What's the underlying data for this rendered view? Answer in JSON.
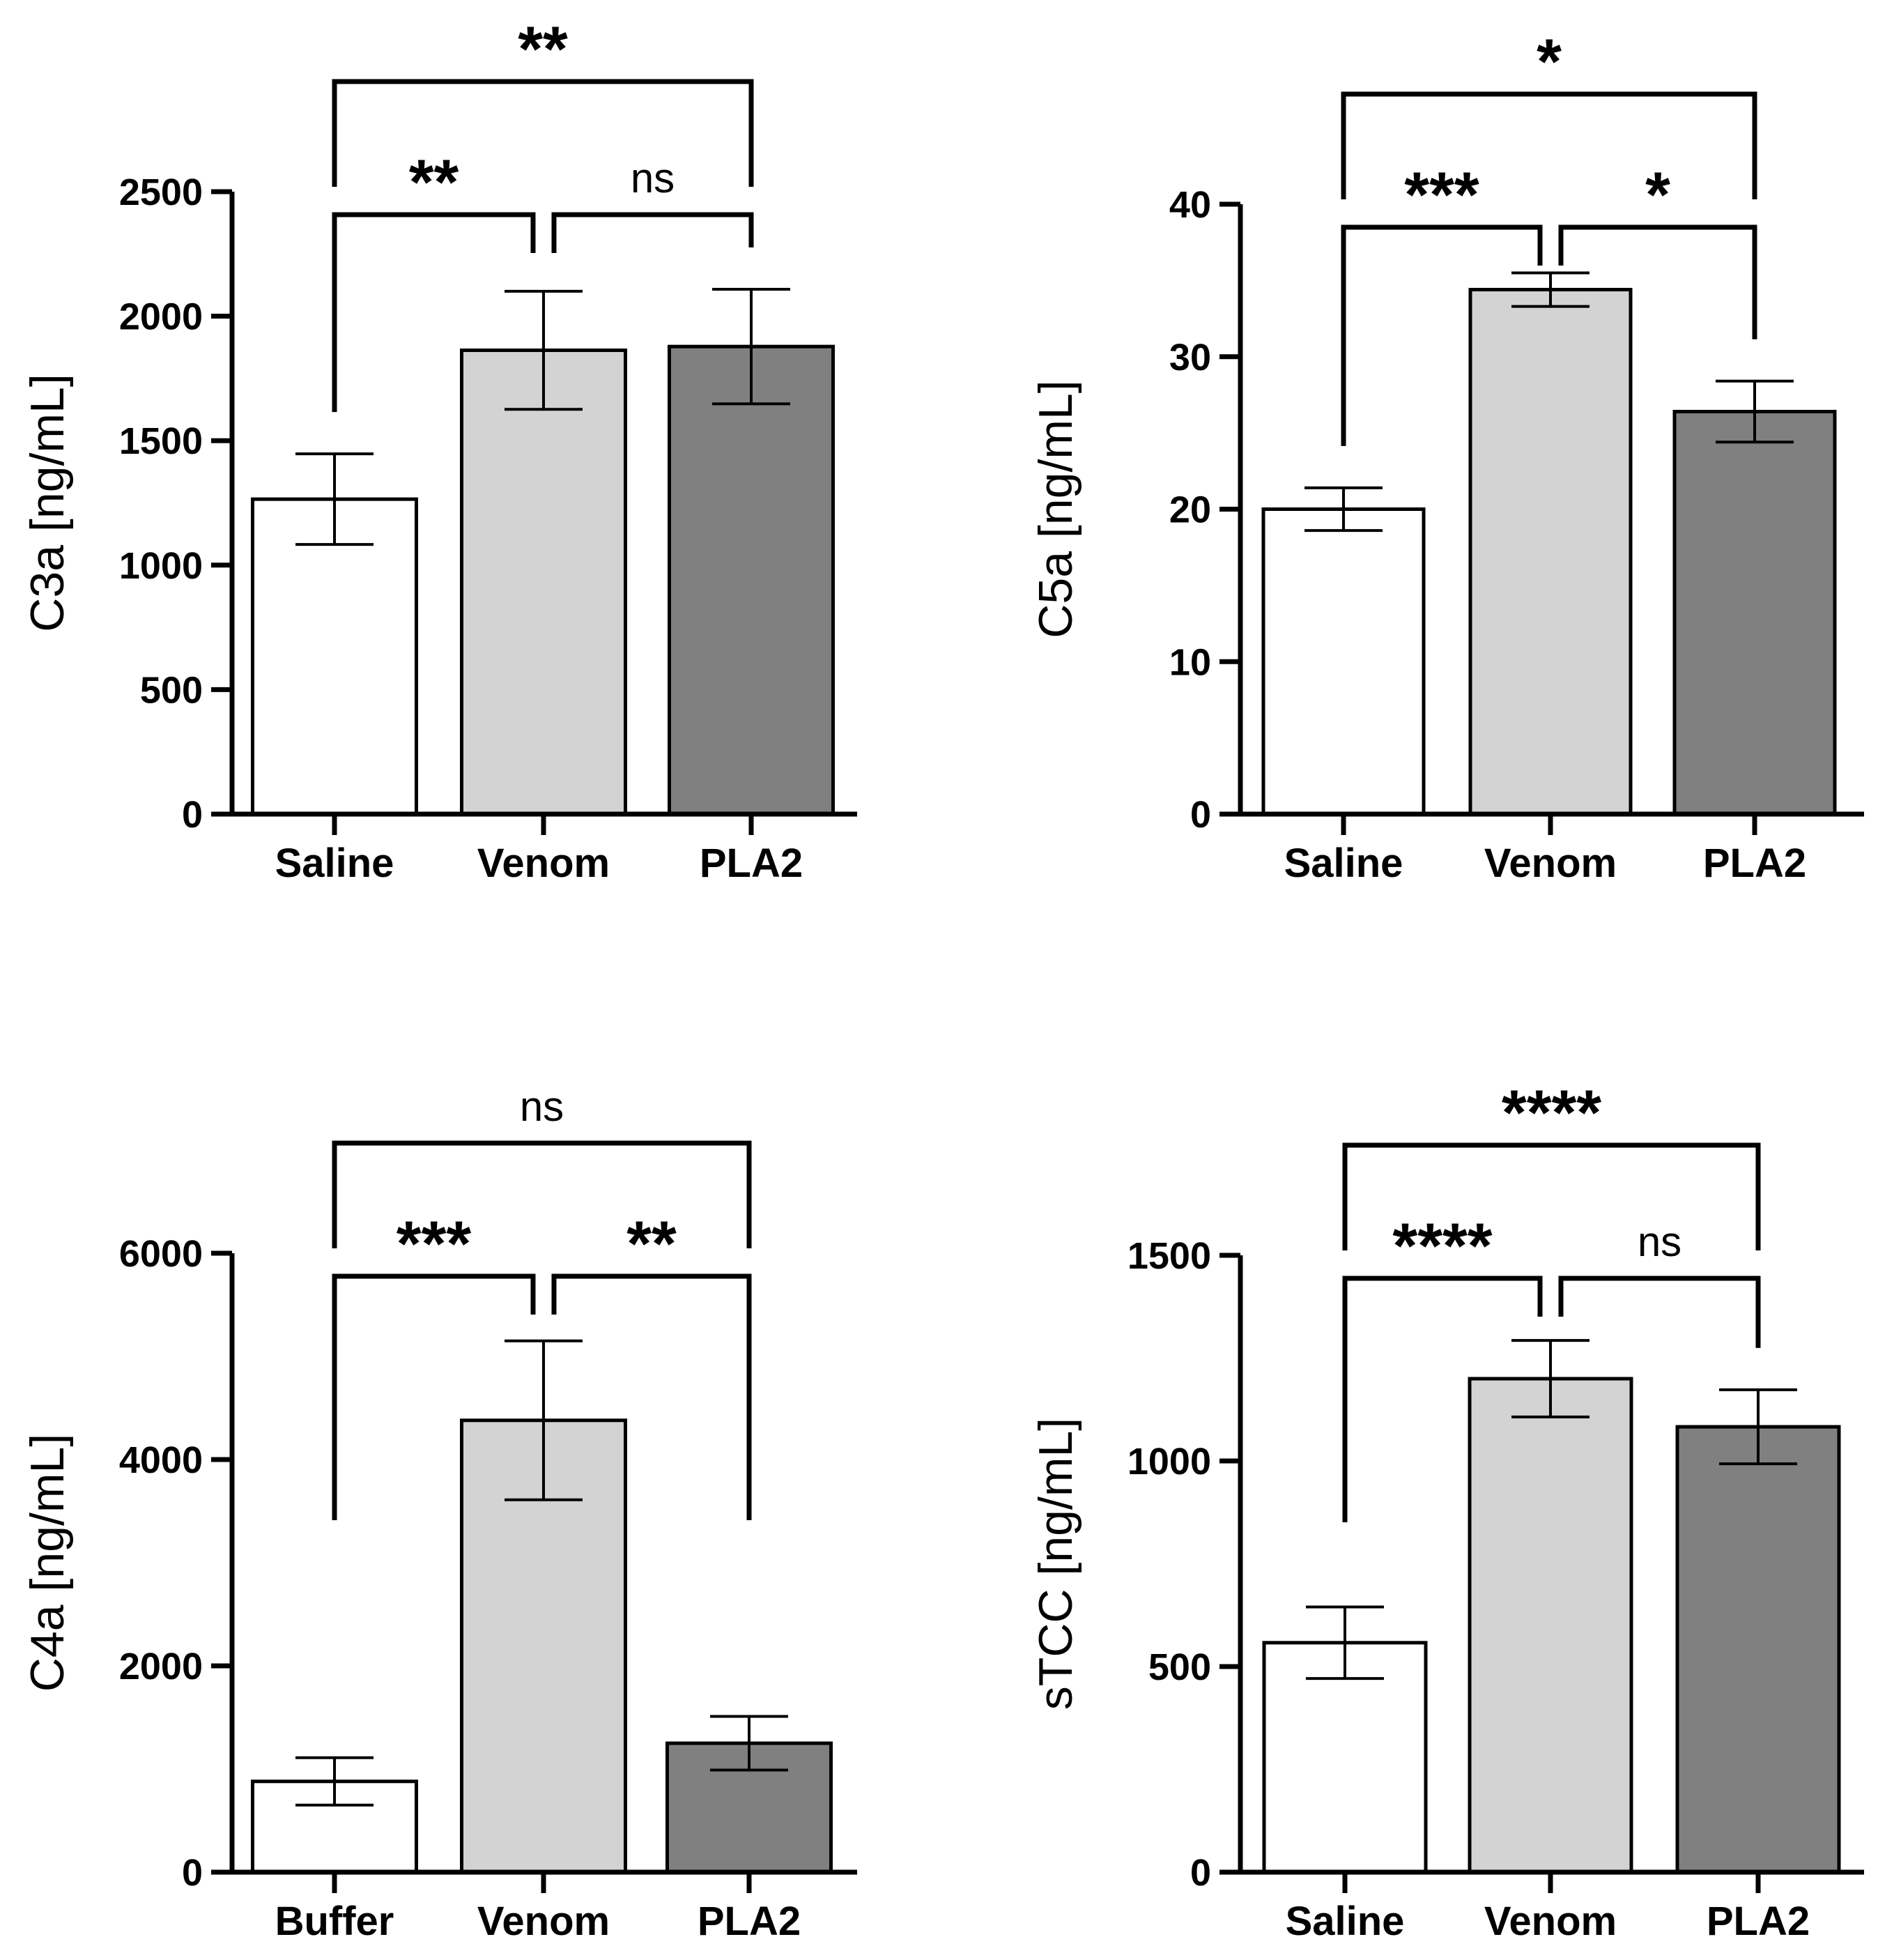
{
  "chart_data": [
    {
      "type": "bar",
      "id": "c3a",
      "categories": [
        "Saline",
        "Venom",
        "PLA2"
      ],
      "values": [
        1265,
        1863,
        1878
      ],
      "errors": [
        182,
        237,
        230
      ],
      "colors": [
        "#ffffff",
        "#d3d3d3",
        "#808080"
      ],
      "ylabel": "C3a [ng/mL]",
      "ylim": [
        0,
        2500
      ],
      "yticks": [
        0,
        500,
        1000,
        1500,
        2000,
        2500
      ],
      "legend": "none",
      "significance": [
        {
          "from": 0,
          "to": 1,
          "label": "**",
          "level": 1
        },
        {
          "from": 1,
          "to": 2,
          "label": "ns",
          "level": 1
        },
        {
          "from": 0,
          "to": 2,
          "label": "**",
          "level": 2
        }
      ]
    },
    {
      "type": "bar",
      "id": "c5a",
      "categories": [
        "Saline",
        "Venom",
        "PLA2"
      ],
      "values": [
        20,
        34.4,
        26.4
      ],
      "errors": [
        1.4,
        1.1,
        2.0
      ],
      "colors": [
        "#ffffff",
        "#d3d3d3",
        "#808080"
      ],
      "ylabel": "C5a [ng/mL]",
      "ylim": [
        0,
        40
      ],
      "yticks": [
        0,
        10,
        20,
        30,
        40
      ],
      "legend": "none",
      "significance": [
        {
          "from": 0,
          "to": 1,
          "label": "***",
          "level": 1
        },
        {
          "from": 1,
          "to": 2,
          "label": "*",
          "level": 1
        },
        {
          "from": 0,
          "to": 2,
          "label": "*",
          "level": 2
        }
      ]
    },
    {
      "type": "bar",
      "id": "c4a",
      "categories": [
        "Buffer",
        "Venom",
        "PLA2"
      ],
      "values": [
        880,
        4380,
        1250
      ],
      "errors": [
        230,
        770,
        260
      ],
      "colors": [
        "#ffffff",
        "#d3d3d3",
        "#808080"
      ],
      "ylabel": "C4a [ng/mL]",
      "ylim": [
        0,
        6000
      ],
      "yticks": [
        0,
        2000,
        4000,
        6000
      ],
      "legend": "none",
      "significance": [
        {
          "from": 0,
          "to": 1,
          "label": "***",
          "level": 1
        },
        {
          "from": 1,
          "to": 2,
          "label": "**",
          "level": 1
        },
        {
          "from": 0,
          "to": 2,
          "label": "ns",
          "level": 2
        }
      ]
    },
    {
      "type": "bar",
      "id": "stcc",
      "categories": [
        "Saline",
        "Venom",
        "PLA2"
      ],
      "values": [
        558,
        1200,
        1083
      ],
      "errors": [
        87,
        93,
        90
      ],
      "colors": [
        "#ffffff",
        "#d3d3d3",
        "#808080"
      ],
      "ylabel": "sTCC [ng/mL]",
      "ylim": [
        0,
        1500
      ],
      "yticks": [
        0,
        500,
        1000,
        1500
      ],
      "legend": "none",
      "significance": [
        {
          "from": 0,
          "to": 1,
          "label": "****",
          "level": 1
        },
        {
          "from": 1,
          "to": 2,
          "label": "ns",
          "level": 1
        },
        {
          "from": 0,
          "to": 2,
          "label": "****",
          "level": 2
        }
      ]
    }
  ]
}
